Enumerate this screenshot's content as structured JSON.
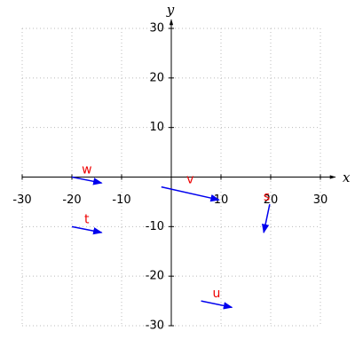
{
  "chart_data": {
    "type": "vector",
    "xlabel": "x",
    "ylabel": "y",
    "xlim": [
      -30,
      30
    ],
    "ylim": [
      -30,
      30
    ],
    "xticks": [
      -30,
      -20,
      -10,
      10,
      20,
      30
    ],
    "yticks": [
      -30,
      -20,
      -10,
      10,
      20,
      30
    ],
    "grid": true,
    "color": "#0000ee",
    "label_color": "#ee0000",
    "vectors": [
      {
        "name": "w",
        "start": [
          -20,
          0
        ],
        "end": [
          -14,
          -1.2
        ]
      },
      {
        "name": "v",
        "start": [
          -2,
          -2
        ],
        "end": [
          9.6,
          -4.6
        ]
      },
      {
        "name": "s",
        "start": [
          19.8,
          -5.5
        ],
        "end": [
          18.6,
          -11.2
        ]
      },
      {
        "name": "t",
        "start": [
          -20,
          -10
        ],
        "end": [
          -14,
          -11.2
        ]
      },
      {
        "name": "u",
        "start": [
          6,
          -25
        ],
        "end": [
          12.2,
          -26.3
        ]
      }
    ]
  }
}
